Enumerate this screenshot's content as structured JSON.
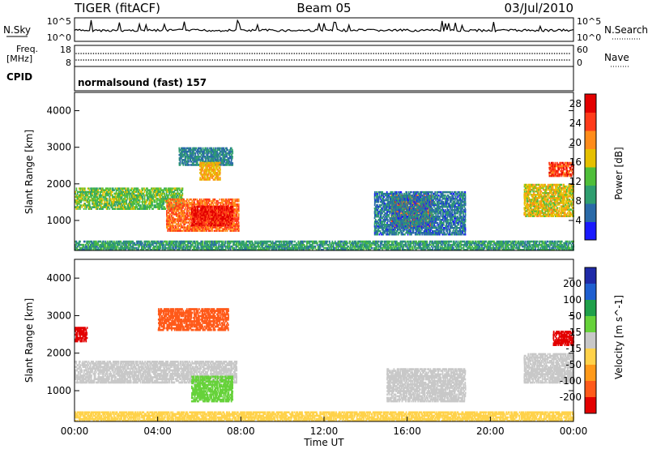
{
  "header": {
    "title_left": "TIGER (fitACF)",
    "title_center": "Beam 05",
    "title_right": "03/Jul/2010"
  },
  "strips": {
    "nsky_label": "N.Sky",
    "nsearch_label": "N.Search",
    "nsky_ticks": [
      "10^5",
      "10^0"
    ],
    "freq_label_line1": "Freq.",
    "freq_label_line2": "[MHz]",
    "freq_ticks": [
      "18",
      "8"
    ],
    "nave_label": "Nave",
    "nave_ticks": [
      "60",
      "0"
    ],
    "cpid_label": "CPID",
    "cpid_text": "normalsound (fast) 157"
  },
  "colors": {
    "power": [
      "#1a1aff",
      "#2a6aa8",
      "#2f9e6f",
      "#4fbf3a",
      "#e6c000",
      "#ff8c1a",
      "#ff3b1a",
      "#e30000"
    ],
    "velocity": [
      "#1f2aa8",
      "#1f5fd0",
      "#1fa04a",
      "#66d23a",
      "#c8c8c8",
      "#ffd24a",
      "#ff9a1a",
      "#ff5a1a",
      "#e30000"
    ]
  },
  "chart_data": [
    {
      "type": "heatmap",
      "name": "power",
      "xlabel": "",
      "ylabel": "Slant Range [km]",
      "x_range": [
        "00:00",
        "00:00"
      ],
      "ylim": [
        180,
        4500
      ],
      "yticks": [
        1000,
        2000,
        3000,
        4000
      ],
      "colorbar_label": "Power [dB]",
      "colorbar_ticks": [
        4,
        8,
        12,
        16,
        20,
        24,
        28
      ],
      "colorbar_range": [
        0,
        30
      ],
      "echo_regions": [
        {
          "t_start": 0.0,
          "t_end": 5.2,
          "r_start": 1300,
          "r_end": 1900,
          "level": 14
        },
        {
          "t_start": 4.4,
          "t_end": 7.9,
          "r_start": 700,
          "r_end": 1600,
          "level": 24
        },
        {
          "t_start": 5.6,
          "t_end": 7.6,
          "r_start": 850,
          "r_end": 1400,
          "level": 29
        },
        {
          "t_start": 5.0,
          "t_end": 7.6,
          "r_start": 2500,
          "r_end": 3000,
          "level": 8
        },
        {
          "t_start": 6.0,
          "t_end": 7.0,
          "r_start": 2100,
          "r_end": 2600,
          "level": 20
        },
        {
          "t_start": 15.2,
          "t_end": 17.2,
          "r_start": 800,
          "r_end": 1700,
          "level": 25
        },
        {
          "t_start": 14.4,
          "t_end": 18.8,
          "r_start": 600,
          "r_end": 1800,
          "level": 7
        },
        {
          "t_start": 21.6,
          "t_end": 24.0,
          "r_start": 1100,
          "r_end": 2000,
          "level": 18
        },
        {
          "t_start": 22.8,
          "t_end": 24.0,
          "r_start": 2200,
          "r_end": 2600,
          "level": 26
        },
        {
          "t_start": 0.0,
          "t_end": 24.0,
          "r_start": 180,
          "r_end": 450,
          "level": 10
        }
      ]
    },
    {
      "type": "heatmap",
      "name": "velocity",
      "xlabel": "Time UT",
      "ylabel": "Slant Range [km]",
      "x_range": [
        "00:00",
        "00:00"
      ],
      "xticks": [
        "00:00",
        "04:00",
        "08:00",
        "12:00",
        "16:00",
        "20:00",
        "00:00"
      ],
      "ylim": [
        180,
        4500
      ],
      "yticks": [
        1000,
        2000,
        3000,
        4000
      ],
      "colorbar_label": "Velocity [m s^-1]",
      "colorbar_ticks": [
        200,
        100,
        50,
        15,
        -15,
        -50,
        -100,
        -200
      ],
      "echo_regions": [
        {
          "t_start": 0.0,
          "t_end": 7.8,
          "r_start": 1200,
          "r_end": 1800,
          "level": 0
        },
        {
          "t_start": 5.6,
          "t_end": 7.6,
          "r_start": 700,
          "r_end": 1400,
          "level": 40
        },
        {
          "t_start": 4.0,
          "t_end": 7.4,
          "r_start": 2600,
          "r_end": 3200,
          "level": -120
        },
        {
          "t_start": 0.0,
          "t_end": 0.6,
          "r_start": 2300,
          "r_end": 2700,
          "level": -250
        },
        {
          "t_start": 15.0,
          "t_end": 18.8,
          "r_start": 700,
          "r_end": 1600,
          "level": 0
        },
        {
          "t_start": 0.0,
          "t_end": 24.0,
          "r_start": 180,
          "r_end": 450,
          "level": -30
        },
        {
          "t_start": 21.6,
          "t_end": 24.0,
          "r_start": 1200,
          "r_end": 2000,
          "level": 0
        },
        {
          "t_start": 23.0,
          "t_end": 24.0,
          "r_start": 2200,
          "r_end": 2600,
          "level": -250
        }
      ]
    }
  ]
}
